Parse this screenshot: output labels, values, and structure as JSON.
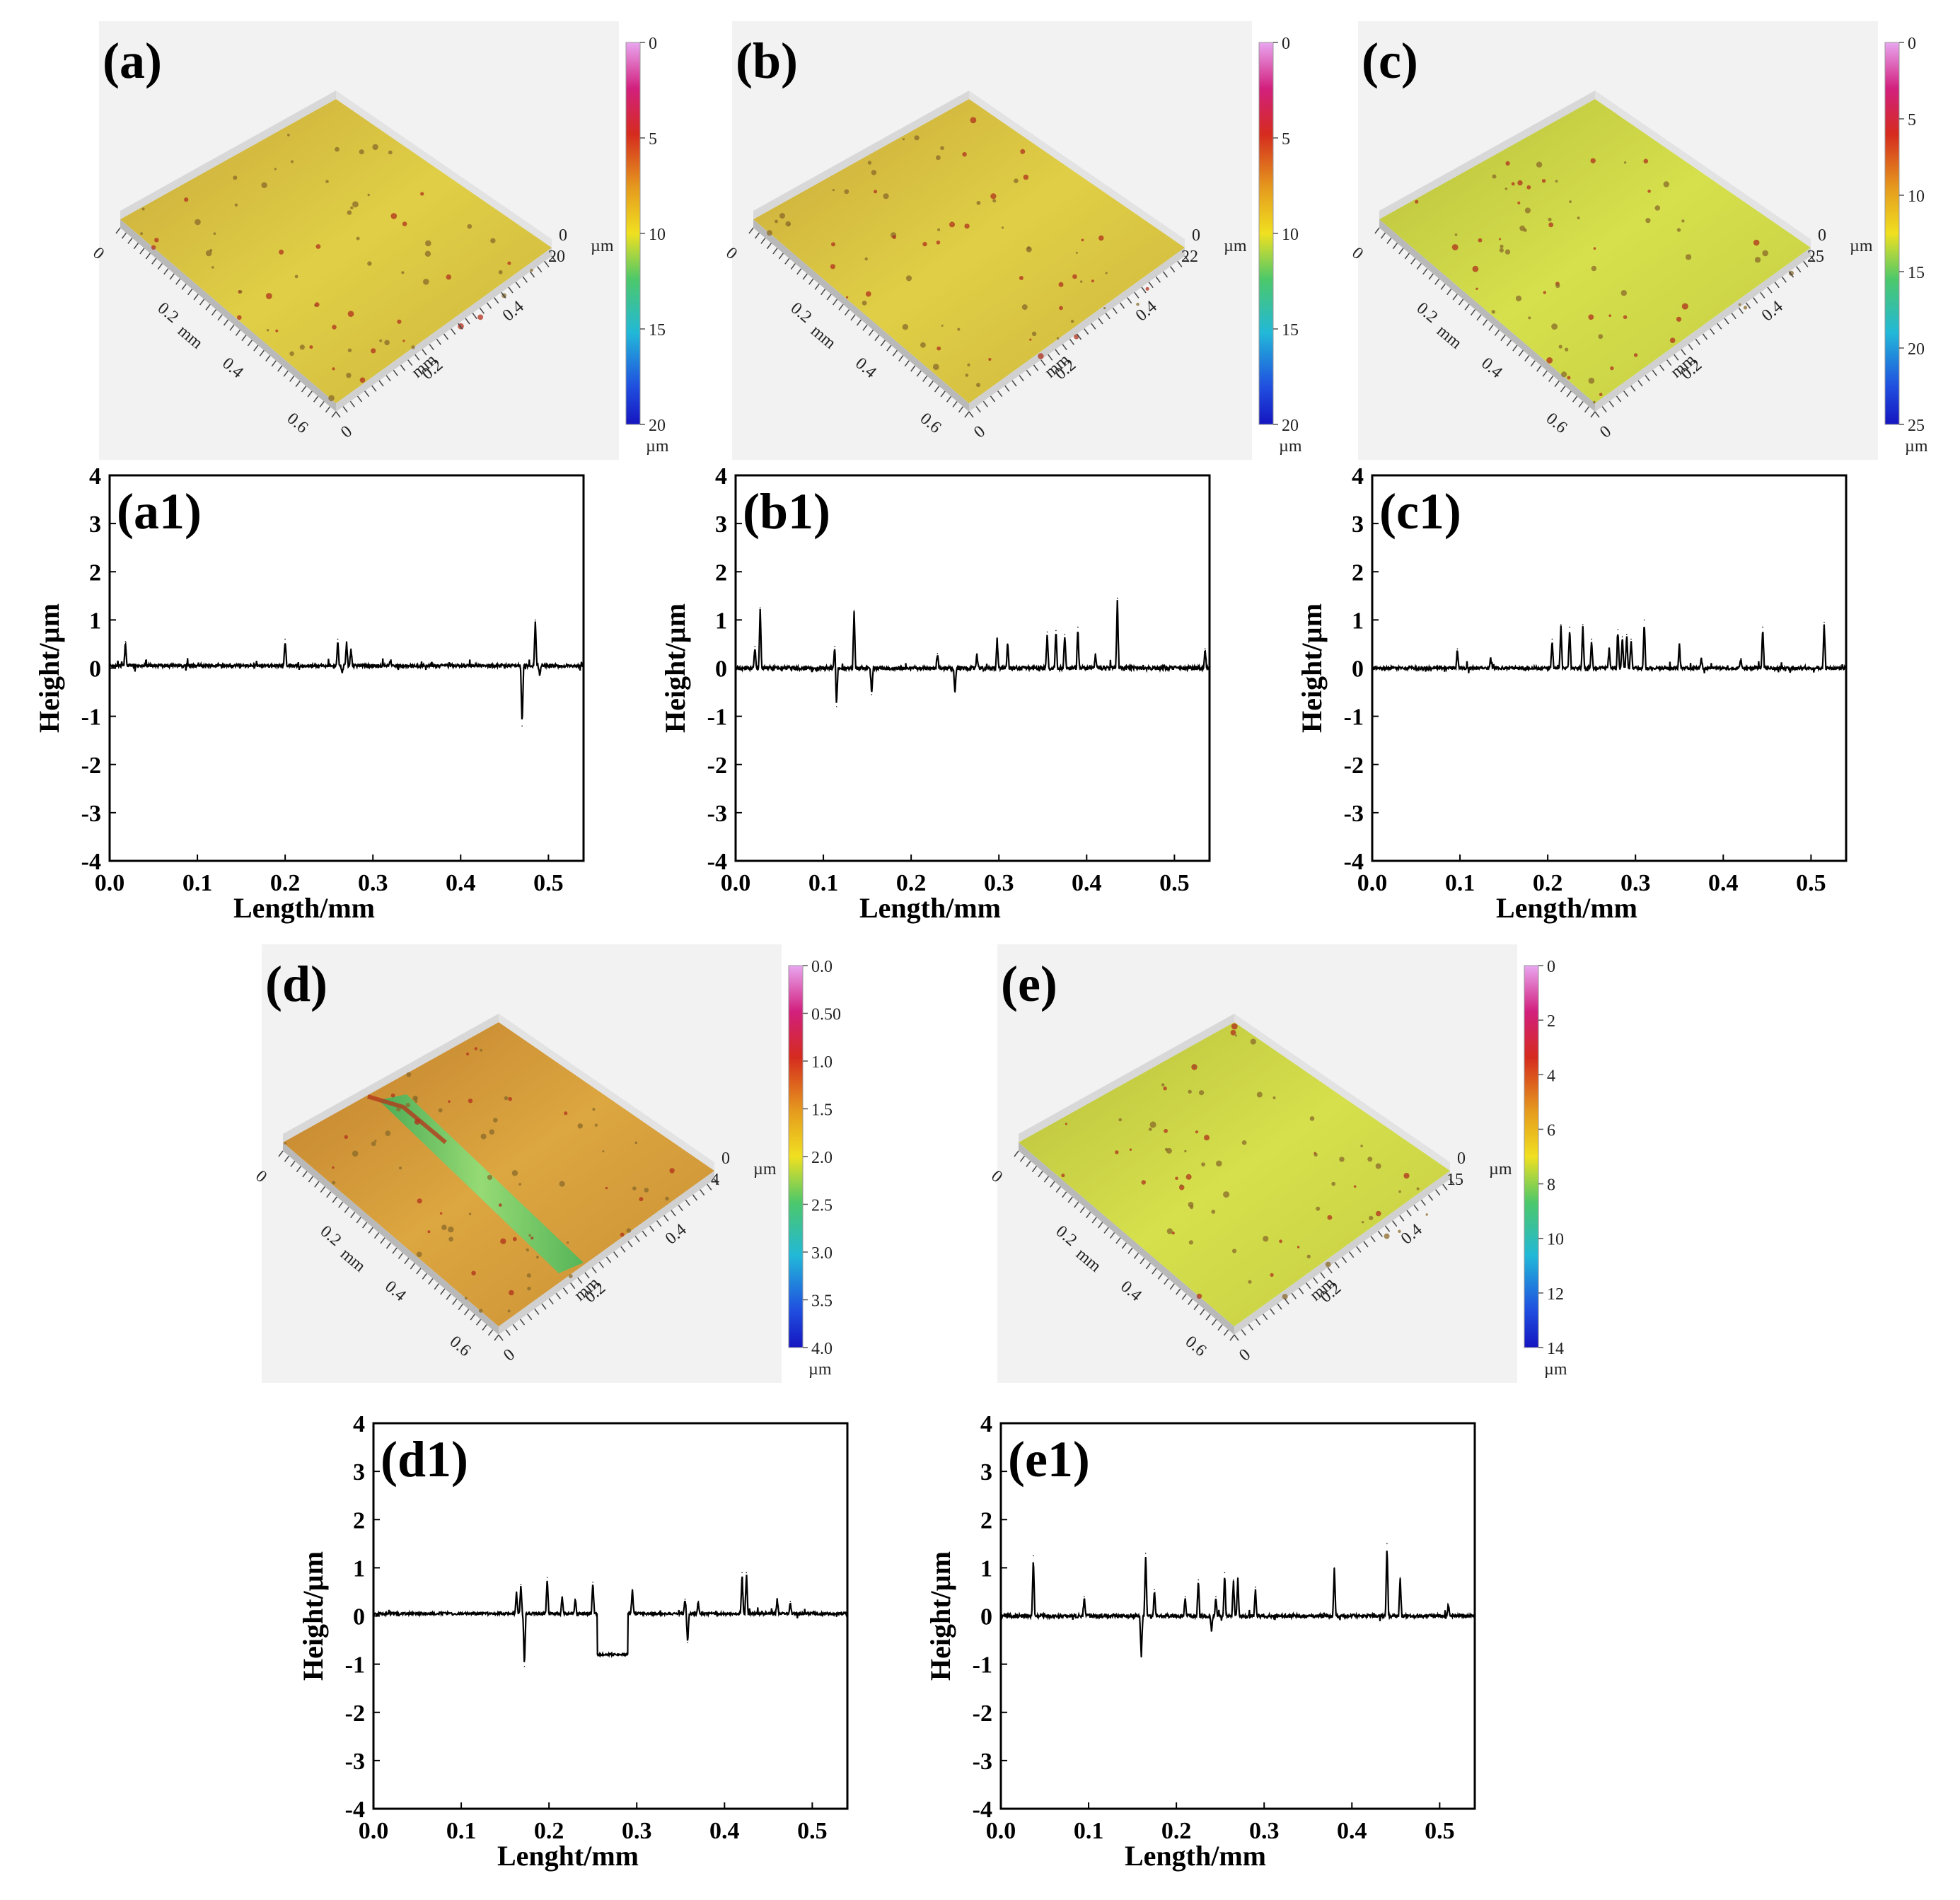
{
  "figure": {
    "colors": {
      "surface_yellow": "#d6c73a",
      "surface_orange": "#cf9a34",
      "surface_lime": "#c6d33c",
      "groove_green": "#6bd06a",
      "pit_red": "#b0301c",
      "line": "#000000"
    },
    "surface_panels": [
      {
        "id": "a",
        "label": "(a)",
        "tone": "yellow",
        "z_axis": {
          "ticks": [
            "0",
            "20"
          ],
          "unit": "µm"
        },
        "axis_x": {
          "ticks": [
            "0",
            "0.2",
            "0.4",
            "0.6"
          ],
          "unit": "mm"
        },
        "axis_y": {
          "ticks": [
            "0",
            "0.2",
            "0.4"
          ],
          "unit": "mm"
        },
        "colorbar": {
          "ticks": [
            "0",
            "5",
            "10",
            "15",
            "20"
          ],
          "unit": "µm"
        }
      },
      {
        "id": "b",
        "label": "(b)",
        "tone": "yellow",
        "z_axis": {
          "ticks": [
            "0",
            "22"
          ],
          "unit": "µm"
        },
        "axis_x": {
          "ticks": [
            "0",
            "0.2",
            "0.4",
            "0.6"
          ],
          "unit": "mm"
        },
        "axis_y": {
          "ticks": [
            "0",
            "0.2",
            "0.4"
          ],
          "unit": "mm"
        },
        "colorbar": {
          "ticks": [
            "0",
            "5",
            "10",
            "15",
            "20"
          ],
          "unit": "µm"
        }
      },
      {
        "id": "c",
        "label": "(c)",
        "tone": "lime",
        "z_axis": {
          "ticks": [
            "0",
            "25"
          ],
          "unit": "µm"
        },
        "axis_x": {
          "ticks": [
            "0",
            "0.2",
            "0.4",
            "0.6"
          ],
          "unit": "mm"
        },
        "axis_y": {
          "ticks": [
            "0",
            "0.2",
            "0.4"
          ],
          "unit": "mm"
        },
        "colorbar": {
          "ticks": [
            "0",
            "5",
            "10",
            "15",
            "20",
            "25"
          ],
          "unit": "µm"
        }
      },
      {
        "id": "d",
        "label": "(d)",
        "tone": "orange",
        "z_axis": {
          "ticks": [
            "0",
            "4"
          ],
          "unit": "µm"
        },
        "axis_x": {
          "ticks": [
            "0",
            "0.2",
            "0.4",
            "0.6"
          ],
          "unit": "mm"
        },
        "axis_y": {
          "ticks": [
            "0",
            "0.2",
            "0.4"
          ],
          "unit": "mm"
        },
        "colorbar": {
          "ticks": [
            "0.0",
            "0.50",
            "1.0",
            "1.5",
            "2.0",
            "2.5",
            "3.0",
            "3.5",
            "4.0"
          ],
          "unit": "µm"
        }
      },
      {
        "id": "e",
        "label": "(e)",
        "tone": "lime",
        "z_axis": {
          "ticks": [
            "0",
            "15"
          ],
          "unit": "µm"
        },
        "axis_x": {
          "ticks": [
            "0",
            "0.2",
            "0.4",
            "0.6"
          ],
          "unit": "mm"
        },
        "axis_y": {
          "ticks": [
            "0",
            "0.2",
            "0.4"
          ],
          "unit": "mm"
        },
        "colorbar": {
          "ticks": [
            "0",
            "2",
            "4",
            "6",
            "8",
            "10",
            "12",
            "14"
          ],
          "unit": "µm"
        }
      }
    ]
  },
  "chart_data": [
    {
      "id": "a1",
      "label": "(a1)",
      "type": "line",
      "xlabel": "Length/mm",
      "ylabel": "Height/µm",
      "xlim": [
        0,
        0.54
      ],
      "ylim": [
        -4,
        4
      ],
      "xticks": [
        "0.0",
        "0.1",
        "0.2",
        "0.3",
        "0.4",
        "0.5"
      ],
      "yticks": [
        "4",
        "3",
        "2",
        "1",
        "0",
        "-1",
        "-2",
        "-3",
        "-4"
      ],
      "baseline": 0.05,
      "noise": 0.03,
      "seed": 11,
      "features": [
        [
          0.018,
          0.5
        ],
        [
          0.2,
          0.55
        ],
        [
          0.26,
          0.55
        ],
        [
          0.265,
          -0.15
        ],
        [
          0.27,
          0.5
        ],
        [
          0.275,
          0.35
        ],
        [
          0.32,
          0.12
        ],
        [
          0.47,
          -1.25
        ],
        [
          0.485,
          0.95
        ],
        [
          0.49,
          -0.2
        ]
      ]
    },
    {
      "id": "b1",
      "label": "(b1)",
      "type": "line",
      "xlabel": "Length/mm",
      "ylabel": "Height/µm",
      "xlim": [
        0,
        0.54
      ],
      "ylim": [
        -4,
        4
      ],
      "xticks": [
        "0.0",
        "0.1",
        "0.2",
        "0.3",
        "0.4",
        "0.5"
      ],
      "yticks": [
        "4",
        "3",
        "2",
        "1",
        "0",
        "-1",
        "-2",
        "-3",
        "-4"
      ],
      "baseline": 0.0,
      "noise": 0.04,
      "seed": 23,
      "features": [
        [
          0.022,
          0.45
        ],
        [
          0.028,
          1.25
        ],
        [
          0.113,
          0.45
        ],
        [
          0.115,
          -0.8
        ],
        [
          0.135,
          1.2
        ],
        [
          0.155,
          -0.55
        ],
        [
          0.23,
          0.3
        ],
        [
          0.25,
          -0.5
        ],
        [
          0.275,
          0.3
        ],
        [
          0.298,
          0.6
        ],
        [
          0.31,
          0.5
        ],
        [
          0.355,
          0.75
        ],
        [
          0.365,
          0.78
        ],
        [
          0.375,
          0.7
        ],
        [
          0.39,
          0.85
        ],
        [
          0.41,
          0.3
        ],
        [
          0.435,
          1.45
        ],
        [
          0.535,
          0.4
        ]
      ]
    },
    {
      "id": "c1",
      "label": "(c1)",
      "type": "line",
      "xlabel": "Length/mm",
      "ylabel": "Height/µm",
      "xlim": [
        0,
        0.54
      ],
      "ylim": [
        -4,
        4
      ],
      "xticks": [
        "0.0",
        "0.1",
        "0.2",
        "0.3",
        "0.4",
        "0.5"
      ],
      "yticks": [
        "4",
        "3",
        "2",
        "1",
        "0",
        "-1",
        "-2",
        "-3",
        "-4"
      ],
      "baseline": 0.0,
      "noise": 0.03,
      "seed": 37,
      "features": [
        [
          0.097,
          0.4
        ],
        [
          0.135,
          0.2
        ],
        [
          0.205,
          0.6
        ],
        [
          0.215,
          0.9
        ],
        [
          0.225,
          0.85
        ],
        [
          0.24,
          0.9
        ],
        [
          0.25,
          0.6
        ],
        [
          0.27,
          0.4
        ],
        [
          0.28,
          0.8
        ],
        [
          0.285,
          0.65
        ],
        [
          0.29,
          0.7
        ],
        [
          0.295,
          0.6
        ],
        [
          0.31,
          1.0
        ],
        [
          0.35,
          0.5
        ],
        [
          0.375,
          0.2
        ],
        [
          0.42,
          0.2
        ],
        [
          0.445,
          0.85
        ],
        [
          0.515,
          0.95
        ]
      ]
    },
    {
      "id": "d1",
      "label": "(d1)",
      "type": "line",
      "xlabel": "Lenght/mm",
      "ylabel": "Height/µm",
      "xlim": [
        0,
        0.54
      ],
      "ylim": [
        -4,
        4
      ],
      "xticks": [
        "0.0",
        "0.1",
        "0.2",
        "0.3",
        "0.4",
        "0.5"
      ],
      "yticks": [
        "4",
        "3",
        "2",
        "1",
        "0",
        "-1",
        "-2",
        "-3",
        "-4"
      ],
      "baseline": 0.05,
      "noise": 0.025,
      "seed": 51,
      "trench": [
        0.255,
        0.29,
        -0.8
      ],
      "features": [
        [
          0.163,
          0.45
        ],
        [
          0.168,
          0.6
        ],
        [
          0.172,
          -1.1
        ],
        [
          0.198,
          0.75
        ],
        [
          0.215,
          0.35
        ],
        [
          0.23,
          0.3
        ],
        [
          0.25,
          0.65
        ],
        [
          0.295,
          0.5
        ],
        [
          0.355,
          0.3
        ],
        [
          0.358,
          -0.6
        ],
        [
          0.37,
          0.25
        ],
        [
          0.42,
          0.85
        ],
        [
          0.425,
          0.85
        ],
        [
          0.46,
          0.3
        ],
        [
          0.475,
          0.25
        ]
      ]
    },
    {
      "id": "e1",
      "label": "(e1)",
      "type": "line",
      "xlabel": "Length/mm",
      "ylabel": "Height/µm",
      "xlim": [
        0,
        0.54
      ],
      "ylim": [
        -4,
        4
      ],
      "xticks": [
        "0.0",
        "0.1",
        "0.2",
        "0.3",
        "0.4",
        "0.5"
      ],
      "yticks": [
        "4",
        "3",
        "2",
        "1",
        "0",
        "-1",
        "-2",
        "-3",
        "-4"
      ],
      "baseline": 0.0,
      "noise": 0.035,
      "seed": 67,
      "features": [
        [
          0.037,
          1.25
        ],
        [
          0.095,
          0.4
        ],
        [
          0.16,
          -0.85
        ],
        [
          0.165,
          1.3
        ],
        [
          0.175,
          0.55
        ],
        [
          0.21,
          0.4
        ],
        [
          0.225,
          0.75
        ],
        [
          0.24,
          -0.3
        ],
        [
          0.245,
          0.4
        ],
        [
          0.255,
          0.9
        ],
        [
          0.265,
          0.75
        ],
        [
          0.27,
          0.8
        ],
        [
          0.29,
          0.6
        ],
        [
          0.38,
          1.0
        ],
        [
          0.44,
          1.5
        ],
        [
          0.455,
          0.8
        ],
        [
          0.51,
          0.25
        ]
      ]
    }
  ]
}
